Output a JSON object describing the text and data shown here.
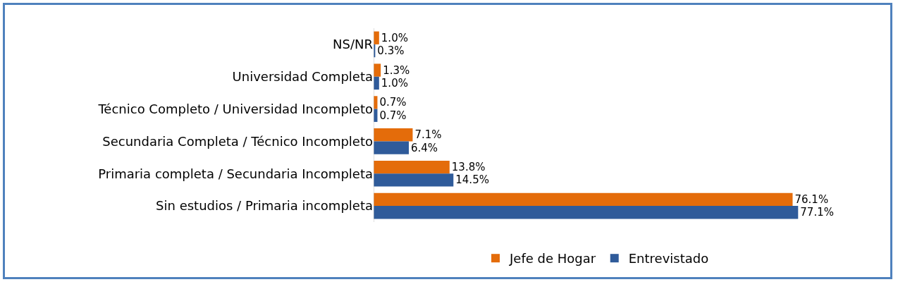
{
  "chart_data": {
    "type": "bar",
    "orientation": "horizontal",
    "categories": [
      "NS/NR",
      "Universidad Completa",
      "Técnico Completo / Universidad Incompleto",
      "Secundaria Completa / Técnico Incompleto",
      "Primaria completa / Secundaria Incompleta",
      "Sin estudios / Primaria incompleta"
    ],
    "series": [
      {
        "name": "Jefe de Hogar",
        "color": "#e46c0a",
        "values": [
          1.0,
          1.3,
          0.7,
          7.1,
          13.8,
          76.1
        ],
        "value_labels": [
          "1.0%",
          "1.3%",
          "0.7%",
          "7.1%",
          "13.8%",
          "76.1%"
        ]
      },
      {
        "name": "Entrevistado",
        "color": "#2f5b9a",
        "values": [
          0.3,
          1.0,
          0.7,
          6.4,
          14.5,
          77.1
        ],
        "value_labels": [
          "0.3%",
          "1.0%",
          "0.7%",
          "6.4%",
          "14.5%",
          "77.1%"
        ]
      }
    ],
    "tick_labels": "y",
    "legend": "bottom"
  }
}
